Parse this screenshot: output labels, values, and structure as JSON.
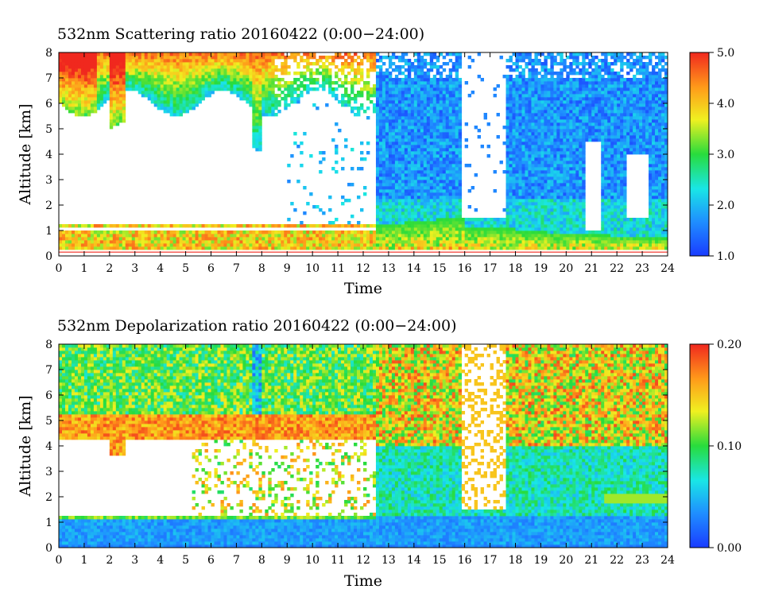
{
  "chart_data": [
    {
      "type": "heatmap",
      "title": "532nm Scattering ratio  20160422 (0:00−24:00)",
      "xlabel": "Time",
      "ylabel": "Altitude [km]",
      "xlim": [
        0,
        24
      ],
      "ylim": [
        0,
        8
      ],
      "xticks": [
        "0",
        "1",
        "2",
        "3",
        "4",
        "5",
        "6",
        "7",
        "8",
        "9",
        "10",
        "11",
        "12",
        "13",
        "14",
        "15",
        "16",
        "17",
        "18",
        "19",
        "20",
        "21",
        "22",
        "23",
        "24"
      ],
      "yticks": [
        "0",
        "1",
        "2",
        "3",
        "4",
        "5",
        "6",
        "7",
        "8"
      ],
      "colorbar": {
        "min": 1.0,
        "max": 5.0,
        "ticks": [
          "1.0",
          "2.0",
          "3.0",
          "4.0",
          "5.0"
        ],
        "colors": [
          "#1a3cff",
          "#1f8fff",
          "#19e6e6",
          "#28dc3c",
          "#f0f020",
          "#ff9a1a",
          "#f0281e"
        ]
      },
      "features": [
        {
          "name": "boundary layer aerosol",
          "time_range": [
            0,
            24
          ],
          "altitude_range": [
            0.3,
            1.3
          ],
          "value": 3.5
        },
        {
          "name": "upper cloud / aerosol",
          "time_range": [
            0,
            12.5
          ],
          "altitude_range": [
            5.5,
            8
          ],
          "value": 3.0
        },
        {
          "name": "thin cloud layers",
          "time_range": [
            12.5,
            24
          ],
          "altitude_range": [
            1.5,
            8
          ],
          "value": 1.5
        }
      ],
      "annotations": [
        {
          "name": "ground line",
          "altitude": 0.15
        }
      ]
    },
    {
      "type": "heatmap",
      "title": "532nm Depolarization ratio  20160422 (0:00−24:00)",
      "xlabel": "Time",
      "ylabel": "Altitude [km]",
      "xlim": [
        0,
        24
      ],
      "ylim": [
        0,
        8
      ],
      "xticks": [
        "0",
        "1",
        "2",
        "3",
        "4",
        "5",
        "6",
        "7",
        "8",
        "9",
        "10",
        "11",
        "12",
        "13",
        "14",
        "15",
        "16",
        "17",
        "18",
        "19",
        "20",
        "21",
        "22",
        "23",
        "24"
      ],
      "yticks": [
        "0",
        "1",
        "2",
        "3",
        "4",
        "5",
        "6",
        "7",
        "8"
      ],
      "colorbar": {
        "min": 0.0,
        "max": 0.2,
        "ticks": [
          "0.00",
          "0.10",
          "0.20"
        ],
        "colors": [
          "#1a3cff",
          "#1f8fff",
          "#19e6e6",
          "#28dc3c",
          "#f0f020",
          "#ff9a1a",
          "#f0281e"
        ]
      },
      "features": [
        {
          "name": "low depolarization near ground",
          "time_range": [
            0,
            24
          ],
          "altitude_range": [
            0,
            1.3
          ],
          "value": 0.03
        },
        {
          "name": "dust layer",
          "time_range": [
            0,
            24
          ],
          "altitude_range": [
            4,
            8
          ],
          "value": 0.14
        },
        {
          "name": "mid-level layer",
          "time_range": [
            12.5,
            24
          ],
          "altitude_range": [
            1.5,
            4
          ],
          "value": 0.06
        }
      ]
    }
  ]
}
